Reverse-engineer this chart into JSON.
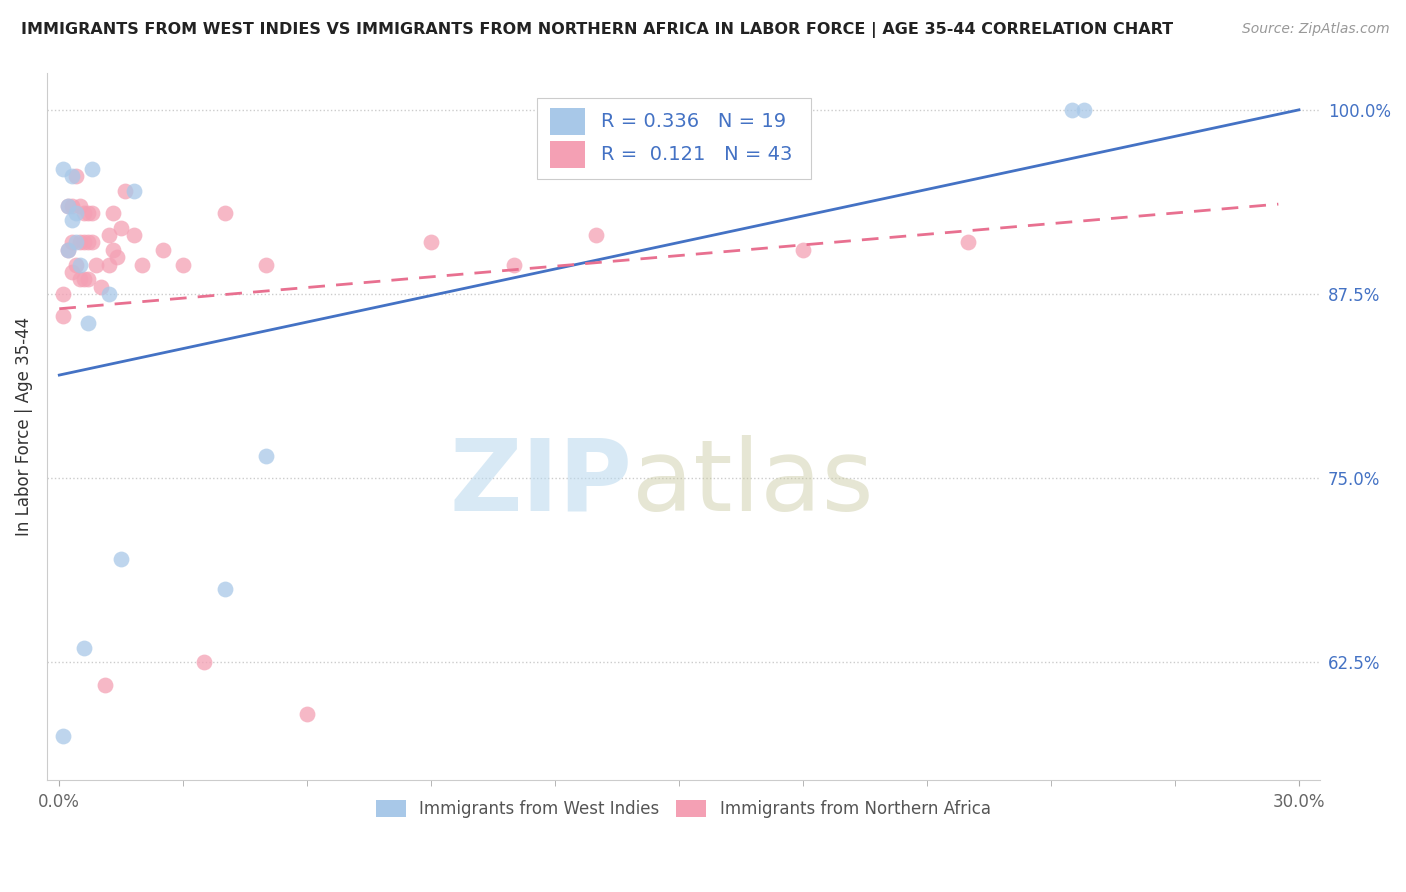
{
  "title": "IMMIGRANTS FROM WEST INDIES VS IMMIGRANTS FROM NORTHERN AFRICA IN LABOR FORCE | AGE 35-44 CORRELATION CHART",
  "source": "Source: ZipAtlas.com",
  "ylabel": "In Labor Force | Age 35-44",
  "xlim": [
    -0.003,
    0.305
  ],
  "ylim": [
    0.545,
    1.025
  ],
  "xticks": [
    0.0,
    0.3
  ],
  "xticklabels": [
    "0.0%",
    "30.0%"
  ],
  "yticks": [
    0.625,
    0.75,
    0.875,
    1.0
  ],
  "yticklabels": [
    "62.5%",
    "75.0%",
    "87.5%",
    "100.0%"
  ],
  "R_blue": 0.336,
  "N_blue": 19,
  "R_pink": 0.121,
  "N_pink": 43,
  "blue_color": "#a8c8e8",
  "pink_color": "#f4a0b4",
  "line_blue_color": "#4472c4",
  "line_pink_color": "#e87090",
  "legend_label_blue": "Immigrants from West Indies",
  "legend_label_pink": "Immigrants from Northern Africa",
  "blue_line_x": [
    0.0,
    0.3
  ],
  "blue_line_y": [
    0.82,
    1.0
  ],
  "pink_line_x": [
    0.0,
    0.295
  ],
  "pink_line_y": [
    0.865,
    0.936
  ],
  "blue_scatter_x": [
    0.001,
    0.002,
    0.002,
    0.003,
    0.003,
    0.004,
    0.004,
    0.005,
    0.006,
    0.007,
    0.008,
    0.012,
    0.015,
    0.018,
    0.04,
    0.05,
    0.001,
    0.245,
    0.248
  ],
  "blue_scatter_y": [
    0.96,
    0.935,
    0.905,
    0.955,
    0.925,
    0.93,
    0.91,
    0.895,
    0.635,
    0.855,
    0.96,
    0.875,
    0.695,
    0.945,
    0.675,
    0.765,
    0.575,
    1.0,
    1.0
  ],
  "pink_scatter_x": [
    0.001,
    0.001,
    0.002,
    0.002,
    0.003,
    0.003,
    0.003,
    0.004,
    0.004,
    0.005,
    0.005,
    0.005,
    0.006,
    0.006,
    0.006,
    0.007,
    0.007,
    0.007,
    0.008,
    0.008,
    0.009,
    0.01,
    0.011,
    0.012,
    0.012,
    0.013,
    0.013,
    0.014,
    0.015,
    0.016,
    0.018,
    0.02,
    0.025,
    0.03,
    0.035,
    0.04,
    0.05,
    0.06,
    0.09,
    0.11,
    0.13,
    0.18,
    0.22
  ],
  "pink_scatter_y": [
    0.875,
    0.86,
    0.935,
    0.905,
    0.935,
    0.91,
    0.89,
    0.955,
    0.895,
    0.935,
    0.91,
    0.885,
    0.93,
    0.91,
    0.885,
    0.93,
    0.91,
    0.885,
    0.93,
    0.91,
    0.895,
    0.88,
    0.61,
    0.915,
    0.895,
    0.93,
    0.905,
    0.9,
    0.92,
    0.945,
    0.915,
    0.895,
    0.905,
    0.895,
    0.625,
    0.93,
    0.895,
    0.59,
    0.91,
    0.895,
    0.915,
    0.905,
    0.91
  ]
}
